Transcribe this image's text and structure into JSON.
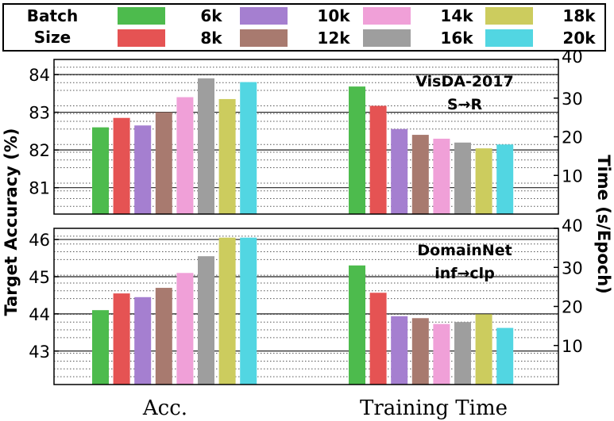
{
  "legend": {
    "title_line1": "Batch",
    "title_line2": "Size",
    "items": [
      {
        "label": "6k",
        "color": "#4dbb4d"
      },
      {
        "label": "8k",
        "color": "#e55353"
      },
      {
        "label": "10k",
        "color": "#a57fd0"
      },
      {
        "label": "12k",
        "color": "#a87a6f"
      },
      {
        "label": "14k",
        "color": "#f0a0d8"
      },
      {
        "label": "16k",
        "color": "#9e9e9e"
      },
      {
        "label": "18k",
        "color": "#cccc5e"
      },
      {
        "label": "20k",
        "color": "#52d6e2"
      }
    ]
  },
  "ylabel_left": "Target Accuracy (%)",
  "ylabel_right": "Time (s/Epoch)",
  "xlabel_groups": [
    "Acc.",
    "Training Time"
  ],
  "chart_data": [
    {
      "type": "bar",
      "panel": "top",
      "annotation_line1": "VisDA-2017",
      "annotation_line2": "S→R",
      "categories": [
        "6k",
        "8k",
        "10k",
        "12k",
        "14k",
        "16k",
        "18k",
        "20k"
      ],
      "left_axis": {
        "ylim": [
          80.3,
          84.4
        ],
        "ticks": [
          "81",
          "82",
          "83",
          "84"
        ]
      },
      "right_axis": {
        "ylim": [
          0,
          40
        ],
        "ticks": [
          "10",
          "20",
          "30",
          "40"
        ]
      },
      "accuracy_values": [
        82.6,
        82.85,
        82.65,
        83.0,
        83.4,
        83.9,
        83.35,
        83.8
      ],
      "time_values": [
        33,
        28,
        22,
        20.5,
        19.5,
        18.5,
        17,
        18
      ]
    },
    {
      "type": "bar",
      "panel": "bottom",
      "annotation_line1": "DomainNet",
      "annotation_line2": "inf→clp",
      "categories": [
        "6k",
        "8k",
        "10k",
        "12k",
        "14k",
        "16k",
        "18k",
        "20k"
      ],
      "left_axis": {
        "ylim": [
          42.1,
          46.3
        ],
        "ticks": [
          "43",
          "44",
          "45",
          "46"
        ]
      },
      "right_axis": {
        "ylim": [
          0,
          40
        ],
        "ticks": [
          "10",
          "20",
          "30",
          "40"
        ]
      },
      "accuracy_values": [
        44.1,
        44.55,
        44.45,
        44.7,
        45.1,
        45.55,
        46.05,
        46.05
      ],
      "time_values": [
        30.5,
        23.5,
        17.5,
        17,
        15.5,
        16,
        18,
        14.5
      ]
    }
  ]
}
